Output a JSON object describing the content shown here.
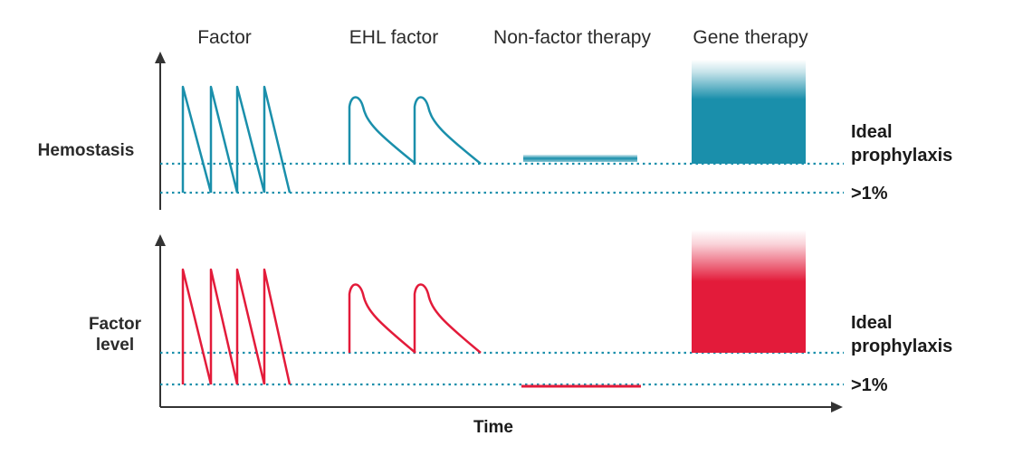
{
  "columns": [
    "Factor",
    "EHL factor",
    "Non-factor therapy",
    "Gene therapy"
  ],
  "panels": [
    {
      "label_lines": [
        "Hemostasis"
      ],
      "threshold_labels": {
        "upper": [
          "Ideal",
          "prophylaxis"
        ],
        "lower": ">1%"
      },
      "color": "#1a8fab"
    },
    {
      "label_lines": [
        "Factor",
        "level"
      ],
      "threshold_labels": {
        "upper": [
          "Ideal",
          "prophylaxis"
        ],
        "lower": ">1%"
      },
      "color": "#e31b3a"
    }
  ],
  "x_axis_label": "Time",
  "colors": {
    "teal": "#1a8fab",
    "red": "#e31b3a",
    "axis": "#333333"
  }
}
